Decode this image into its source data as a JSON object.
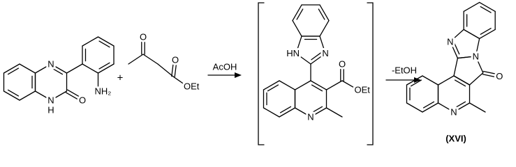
{
  "scheme": {
    "reagent_1": {
      "labels": [
        "N",
        "N",
        "H",
        "O",
        "NH₂"
      ]
    },
    "plus": "+",
    "reagent_2": {
      "labels": [
        "O",
        "O",
        "OEt"
      ]
    },
    "step_1": {
      "reagent": "AcOH"
    },
    "intermediate": {
      "labels": [
        "HN",
        "N",
        "N",
        "O",
        "OEt"
      ]
    },
    "step_2": {
      "reagent": "-EtOH"
    },
    "product": {
      "labels": [
        "N",
        "N",
        "O",
        "N"
      ],
      "name": "(XVI)"
    }
  }
}
